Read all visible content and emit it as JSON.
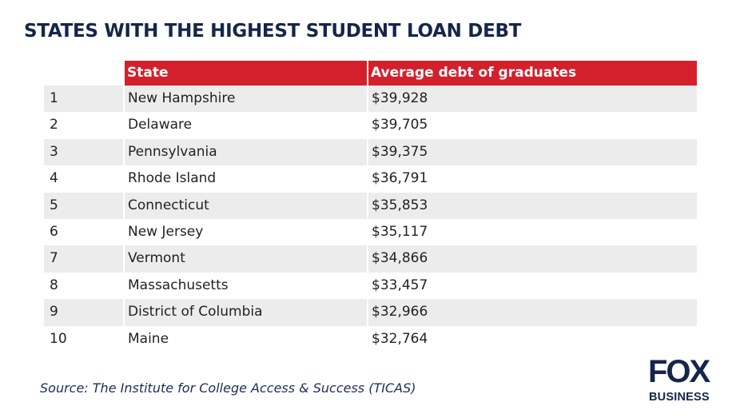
{
  "header": {
    "title": "STATES WITH THE HIGHEST STUDENT LOAN DEBT"
  },
  "table": {
    "columns": [
      "State",
      "Average debt of graduates"
    ],
    "rows": [
      [
        "1",
        "New Hampshire",
        "$39,928"
      ],
      [
        "2",
        "Delaware",
        "$39,705"
      ],
      [
        "3",
        "Pennsylvania",
        "$39,375"
      ],
      [
        "4",
        "Rhode Island",
        "$36,791"
      ],
      [
        "5",
        "Connecticut",
        "$35,853"
      ],
      [
        "6",
        "New Jersey",
        "$35,117"
      ],
      [
        "7",
        "Vermont",
        "$34,866"
      ],
      [
        "8",
        "Massachusetts",
        "$33,457"
      ],
      [
        "9",
        "District of Columbia",
        "$32,966"
      ],
      [
        "10",
        "Maine",
        "$32,764"
      ]
    ]
  },
  "footer": {
    "source": "Source: The Institute for College Access & Success (TICAS)"
  },
  "logo": {
    "top": "FOX",
    "bottom": "BUSINESS"
  }
}
